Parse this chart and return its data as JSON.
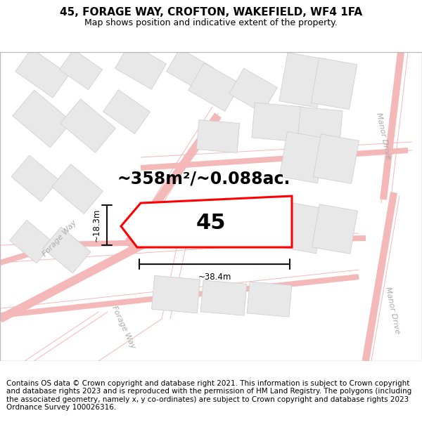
{
  "title": "45, FORAGE WAY, CROFTON, WAKEFIELD, WF4 1FA",
  "subtitle": "Map shows position and indicative extent of the property.",
  "footer": "Contains OS data © Crown copyright and database right 2021. This information is subject to Crown copyright and database rights 2023 and is reproduced with the permission of HM Land Registry. The polygons (including the associated geometry, namely x, y co-ordinates) are subject to Crown copyright and database rights 2023 Ordnance Survey 100026316.",
  "area_label": "~358m²/~0.088ac.",
  "number_label": "45",
  "dim_width": "~38.4m",
  "dim_height": "~18.3m",
  "street_label_forage_top": "Forage Way",
  "street_label_forage_bot": "Forage Way",
  "street_label_manor_top": "Manor Drive",
  "street_label_manor_bot": "Manor Drive",
  "plot_edge_color": "#ff0000",
  "road_line_color": "#f4b8b8",
  "road_outline_color": "#f0c0c0",
  "block_fill": "#e8e8e8",
  "block_edge": "#d0d0d0",
  "bg_color": "#ffffff",
  "title_fontsize": 11,
  "subtitle_fontsize": 9,
  "footer_fontsize": 7.5,
  "area_fontsize": 17,
  "number_fontsize": 22,
  "street_fontsize": 8,
  "dim_line_color": "#111111",
  "street_text_color": "#aaaaaa",
  "map_border_color": "#bbbbbb"
}
